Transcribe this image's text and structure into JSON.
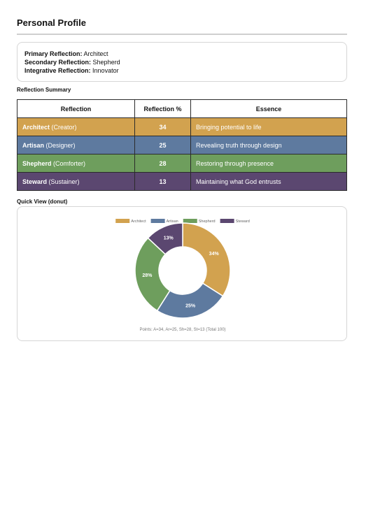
{
  "page": {
    "title": "Personal Profile"
  },
  "summary": [
    {
      "label": "Primary Reflection:",
      "value": "Architect"
    },
    {
      "label": "Secondary Reflection:",
      "value": "Shepherd"
    },
    {
      "label": "Integrative Reflection:",
      "value": "Innovator"
    }
  ],
  "table_section": {
    "heading": "Reflection Summary",
    "headers": [
      "Reflection",
      "Reflection %",
      "Essence"
    ],
    "rows": [
      {
        "name": "Architect",
        "role": "(Creator)",
        "percent": "34",
        "essence": "Bringing potential to life",
        "color": "#d2a24f"
      },
      {
        "name": "Artisan",
        "role": "(Designer)",
        "percent": "25",
        "essence": "Revealing truth through design",
        "color": "#5e7a9f"
      },
      {
        "name": "Shepherd",
        "role": "(Comforter)",
        "percent": "28",
        "essence": "Restoring through presence",
        "color": "#6e9e5d"
      },
      {
        "name": "Steward",
        "role": "(Sustainer)",
        "percent": "13",
        "essence": "Maintaining what God entrusts",
        "color": "#5b4770"
      }
    ]
  },
  "chart_section": {
    "heading": "Quick View (donut)",
    "footnote": "Points: A=34, Ar=25, Sh=28, St=13 (Total 100)"
  },
  "chart_data": {
    "type": "pie",
    "donut": true,
    "categories": [
      "Architect",
      "Artisan",
      "Shepherd",
      "Steward"
    ],
    "values": [
      34,
      25,
      28,
      13
    ],
    "labels": [
      "34%",
      "25%",
      "28%",
      "13%"
    ],
    "colors": [
      "#d2a24f",
      "#5e7a9f",
      "#6e9e5d",
      "#5b4770"
    ],
    "legend_position": "top"
  }
}
